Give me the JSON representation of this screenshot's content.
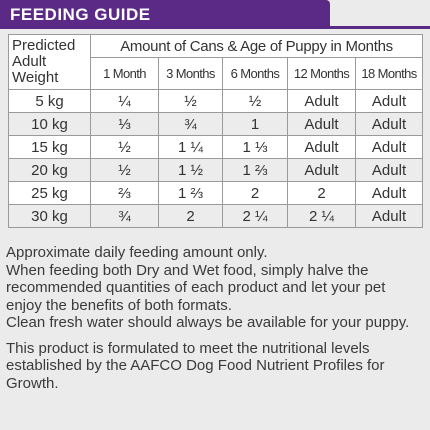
{
  "header": {
    "title": "FEEDING GUIDE"
  },
  "table": {
    "corner": "Predicted Adult Weight",
    "group_header": "Amount of Cans & Age of Puppy in Months",
    "columns": [
      "1 Month",
      "3 Months",
      "6 Months",
      "12 Months",
      "18 Months"
    ],
    "rows": [
      [
        "5 kg",
        "¼",
        "½",
        "½",
        "Adult",
        "Adult"
      ],
      [
        "10 kg",
        "⅓",
        "¾",
        "1",
        "Adult",
        "Adult"
      ],
      [
        "15 kg",
        "½",
        "1 ¼",
        "1 ⅓",
        "Adult",
        "Adult"
      ],
      [
        "20 kg",
        "½",
        "1 ½",
        "1 ⅔",
        "Adult",
        "Adult"
      ],
      [
        "25 kg",
        "⅔",
        "1 ⅔",
        "2",
        "2",
        "Adult"
      ],
      [
        "30 kg",
        "¾",
        "2",
        "2 ¼",
        "2 ¼",
        "Adult"
      ]
    ]
  },
  "notes": [
    "Approximate daily feeding amount only.",
    "When feeding both Dry and Wet food, simply halve the recommended quantities of each product and let your pet enjoy the benefits of both formats.",
    "Clean fresh water should always be available for your puppy.",
    "This product is formulated to meet the nutritional levels established by the AAFCO Dog Food Nutrient Profiles for Growth."
  ]
}
